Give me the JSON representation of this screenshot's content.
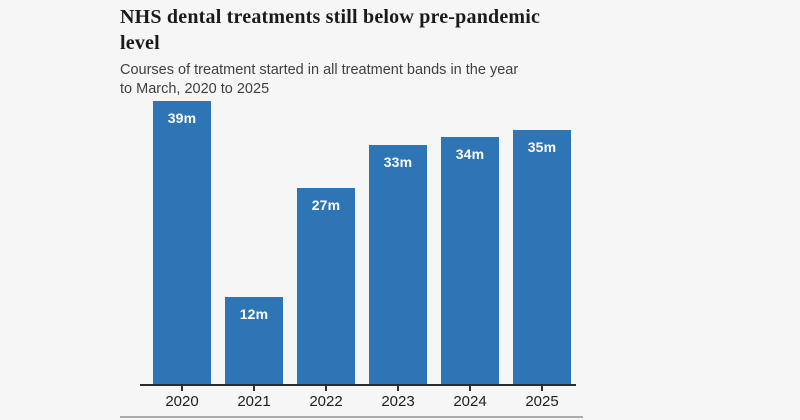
{
  "page": {
    "background_color": "#f6f6f6"
  },
  "header": {
    "title": "NHS dental treatments still below pre-pandemic level",
    "title_lines": [
      "NHS dental treatments still below pre-pandemic",
      "level"
    ],
    "subtitle": "Courses of treatment started in all treatment bands in the year to March, 2020 to 2025",
    "subtitle_lines": [
      "Courses of treatment started in all treatment bands in the year",
      "to March, 2020 to 2025"
    ]
  },
  "chart_data": {
    "type": "bar",
    "title": "NHS dental treatments still below pre-pandemic level",
    "subtitle": "Courses of treatment started in all treatment bands in the year to March, 2020 to 2025",
    "categories": [
      "2020",
      "2021",
      "2022",
      "2023",
      "2024",
      "2025"
    ],
    "values": [
      39,
      12,
      27,
      33,
      34,
      35
    ],
    "bar_labels": [
      "39m",
      "12m",
      "27m",
      "33m",
      "34m",
      "35m"
    ],
    "value_unit": "m",
    "ylim": [
      0,
      39
    ],
    "grid": false,
    "legend": false,
    "bar_color": "#2e75b5",
    "bar_label_color": "#ffffff",
    "axis_color": "#2b2b2b",
    "xlabel": "",
    "ylabel": ""
  }
}
